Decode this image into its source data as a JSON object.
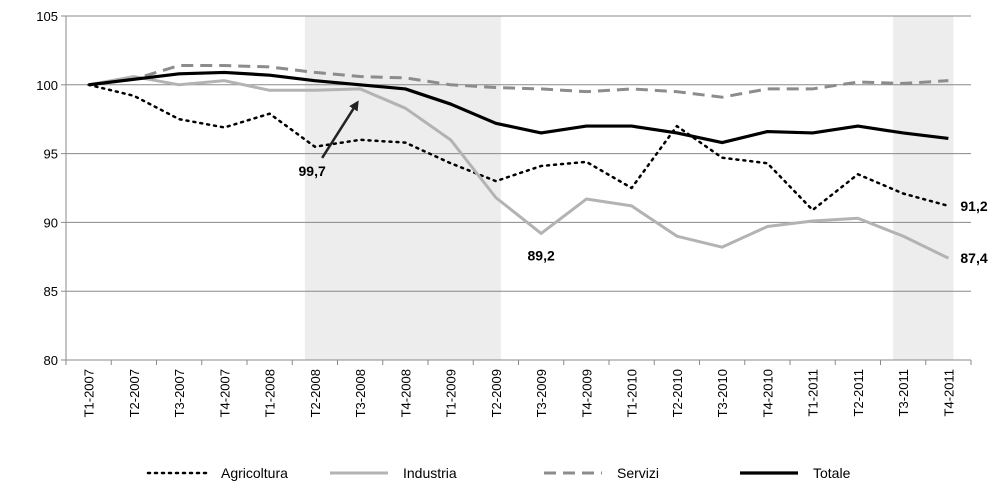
{
  "chart_data": {
    "type": "line",
    "title": "",
    "xlabel": "",
    "ylabel": "",
    "ylim": [
      80,
      105
    ],
    "yticks": [
      80,
      85,
      90,
      95,
      100,
      105
    ],
    "grid": "horizontal",
    "legend_position": "bottom",
    "categories": [
      "T1-2007",
      "T2-2007",
      "T3-2007",
      "T4-2007",
      "T1-2008",
      "T2-2008",
      "T3-2008",
      "T4-2008",
      "T1-2009",
      "T2-2009",
      "T3-2009",
      "T4-2009",
      "T1-2010",
      "T2-2010",
      "T3-2010",
      "T4-2010",
      "T1-2011",
      "T2-2011",
      "T3-2011",
      "T4-2011"
    ],
    "shaded_periods": [
      {
        "from": "T2-2008",
        "to": "T2-2009"
      },
      {
        "from": "T3-2011",
        "to": "T4-2011"
      }
    ],
    "series": [
      {
        "name": "Agricoltura",
        "style": "dotted",
        "color": "#000000",
        "values": [
          100,
          99.2,
          97.5,
          96.9,
          97.9,
          95.5,
          96.0,
          95.8,
          94.3,
          93.0,
          94.1,
          94.4,
          92.5,
          97.0,
          94.7,
          94.3,
          90.9,
          93.5,
          92.1,
          91.2
        ]
      },
      {
        "name": "Industria",
        "style": "solid",
        "color": "#b3b3b3",
        "values": [
          100,
          100.6,
          100.0,
          100.3,
          99.6,
          99.6,
          99.7,
          98.3,
          96.0,
          91.8,
          89.2,
          91.7,
          91.2,
          89.0,
          88.2,
          89.7,
          90.1,
          90.3,
          89.0,
          87.4
        ]
      },
      {
        "name": "Servizi",
        "style": "dashed",
        "color": "#8c8c8c",
        "values": [
          100,
          100.4,
          101.4,
          101.4,
          101.3,
          100.9,
          100.6,
          100.5,
          100.0,
          99.8,
          99.7,
          99.5,
          99.7,
          99.5,
          99.1,
          99.7,
          99.7,
          100.2,
          100.1,
          100.3
        ]
      },
      {
        "name": "Totale",
        "style": "solid-thick",
        "color": "#000000",
        "values": [
          100,
          100.4,
          100.8,
          100.9,
          100.7,
          100.3,
          100.0,
          99.7,
          98.6,
          97.2,
          96.5,
          97.0,
          97.0,
          96.5,
          95.8,
          96.6,
          96.5,
          97.0,
          96.5,
          96.1
        ]
      }
    ],
    "annotations": [
      {
        "text": "99,7",
        "category": "T3-2008",
        "value": 99.7,
        "arrow": true
      },
      {
        "text": "89,2",
        "category": "T3-2009",
        "value": 89.2,
        "arrow": false
      },
      {
        "text": "91,2",
        "category": "T4-2011",
        "value": 91.2,
        "arrow": false
      },
      {
        "text": "87,4",
        "category": "T4-2011",
        "value": 87.4,
        "arrow": false
      }
    ]
  }
}
